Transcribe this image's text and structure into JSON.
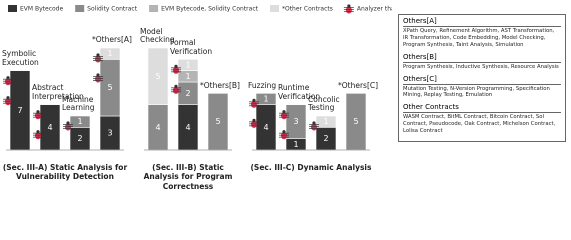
{
  "chart_data": {
    "type": "stacked_bar",
    "marker_legend": "Analyzer that Detects Exploitable Vulnerabilities",
    "groups": [
      {
        "label": "(Sec. III-A) Static Analysis for Vulnerability Detection",
        "categories": [
          "Symbolic Execution",
          "Abstract Interpretation",
          "Machine Learning",
          "*Others[A]"
        ]
      },
      {
        "label": "(Sec. III-B) Static Analysis for Program Correctness",
        "categories": [
          "Model Checking",
          "Formal Verification",
          "*Others[B]"
        ]
      },
      {
        "label": "(Sec. III-C) Dynamic Analysis",
        "categories": [
          "Fuzzing",
          "Runtime Verification",
          "Concolic Testing",
          "*Others[C]"
        ]
      }
    ],
    "series": [
      {
        "name": "EVM Bytecode",
        "color": "#333333",
        "values": [
          7,
          4,
          2,
          3,
          null,
          4,
          null,
          4,
          1,
          2,
          null
        ]
      },
      {
        "name": "Solidity Contract",
        "color": "#8a8a8a",
        "values": [
          null,
          null,
          1,
          5,
          4,
          2,
          5,
          1,
          3,
          null,
          5
        ]
      },
      {
        "name": "EVM Bytecode, Solidity Contract",
        "color": "#b4b4b4",
        "values": [
          null,
          null,
          null,
          null,
          null,
          1,
          null,
          null,
          null,
          null,
          null
        ]
      },
      {
        "name": "*Other Contracts",
        "color": "#dddddd",
        "values": [
          null,
          null,
          null,
          1,
          5,
          1,
          null,
          null,
          null,
          1,
          null
        ]
      }
    ],
    "exploitable": [
      true,
      true,
      true,
      true,
      false,
      true,
      false,
      true,
      true,
      true,
      false
    ],
    "ylim": [
      0,
      9
    ]
  },
  "notes": [
    {
      "title": "Others[A]",
      "text": "XPath Query, Refinement Algorithm, AST Transformation, IR Transformation, Code Embedding, Model Checking, Program Synthesis, Taint Analysis, Simulation"
    },
    {
      "title": "Others[B]",
      "text": "Program Synthesis, Inductive Synthesis, Resource Analysis"
    },
    {
      "title": "Others[C]",
      "text": "Mutation Testing, N-Version Programming, Specification Mining, Replay Testing, Emulation"
    },
    {
      "title": "Other Contracts",
      "text": "WASM Contract, BitML Contract, Bitcoin Contract, Sol Contract, Pseudocode, Oak Contract, Michelson Contract, Lolisa Contract"
    }
  ]
}
